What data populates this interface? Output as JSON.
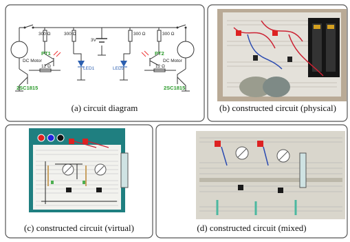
{
  "panels": [
    {
      "caption": "(a)  circuit diagram"
    },
    {
      "caption": "(b) constructed circuit (physical)"
    },
    {
      "caption": "(c) constructed circuit (virtual)"
    },
    {
      "caption": "(d) constructed circuit (mixed)"
    }
  ],
  "circuit": {
    "resistors": [
      "300 Ω",
      "300 Ω",
      "300 Ω",
      "300 Ω",
      "12 Ω",
      "12 Ω"
    ],
    "battery": "3V",
    "motors": [
      "DC Motor",
      "DC Motor"
    ],
    "phototransistors": [
      "PT1",
      "PT2"
    ],
    "leds": [
      "LED1",
      "LED2"
    ],
    "transistors": [
      "2SC1815",
      "2SC1815"
    ]
  }
}
